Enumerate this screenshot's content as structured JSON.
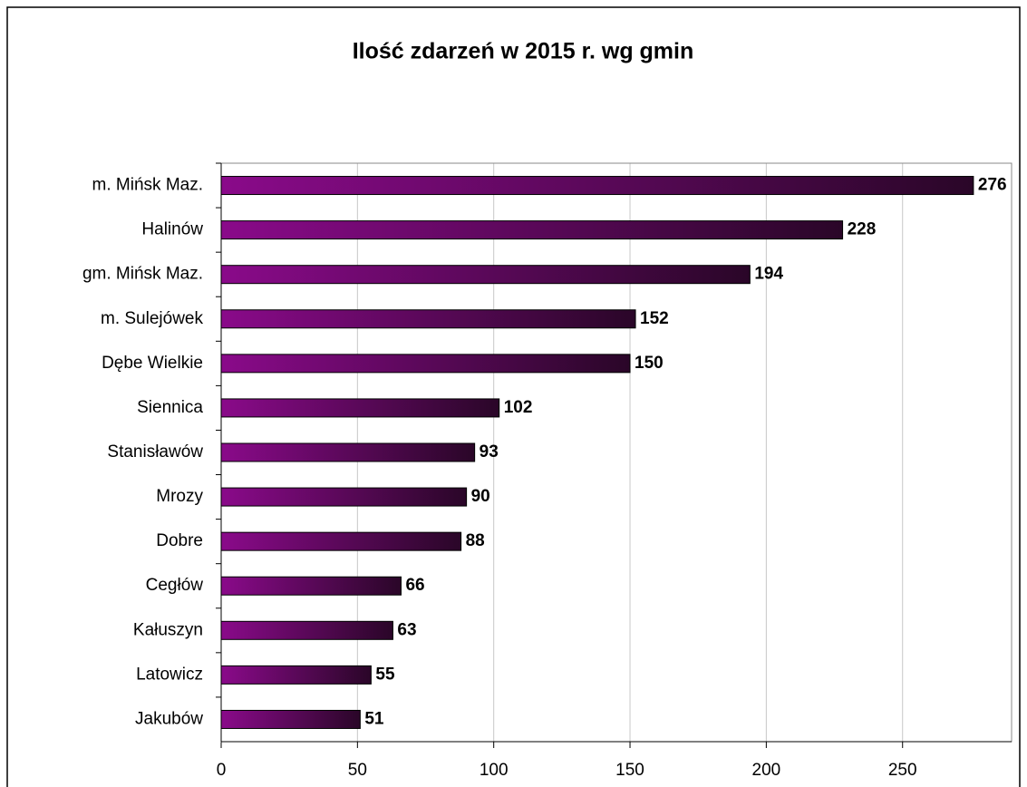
{
  "chart_data": {
    "type": "bar",
    "orientation": "horizontal",
    "title": "Ilość zdarzeń w 2015 r. wg gmin",
    "categories": [
      "m.  Mińsk Maz.",
      "Halinów",
      "gm. Mińsk Maz.",
      "m. Sulejówek",
      "Dębe Wielkie",
      "Siennica",
      "Stanisławów",
      "Mrozy",
      "Dobre",
      "Cegłów",
      "Kałuszyn",
      "Latowicz",
      "Jakubów"
    ],
    "values": [
      276,
      228,
      194,
      152,
      150,
      102,
      93,
      90,
      88,
      66,
      63,
      55,
      51
    ],
    "color": "#8a0a8a",
    "xlim": [
      0,
      290
    ],
    "xticks": [
      0,
      50,
      100,
      150,
      200,
      250
    ],
    "grid": true
  }
}
